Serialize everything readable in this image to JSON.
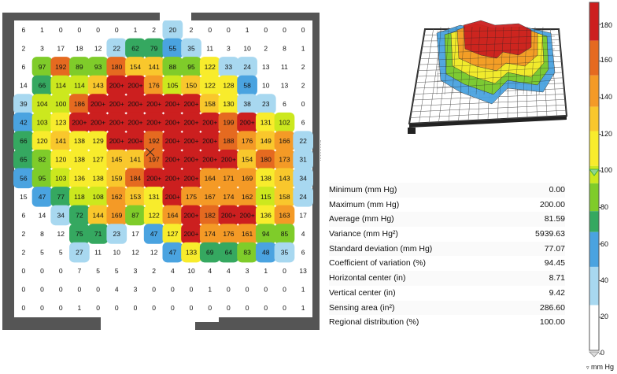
{
  "pressure_map": {
    "rows": [
      [
        "6",
        "1",
        "0",
        "0",
        "0",
        "0",
        "1",
        "2",
        "20",
        "2",
        "0",
        "0",
        "1",
        "0",
        "0",
        "0"
      ],
      [
        "2",
        "3",
        "17",
        "18",
        "12",
        "22",
        "62",
        "79",
        "55",
        "35",
        "11",
        "3",
        "10",
        "2",
        "8",
        "1"
      ],
      [
        "6",
        "97",
        "192",
        "89",
        "93",
        "180",
        "154",
        "141",
        "88",
        "95",
        "122",
        "33",
        "24",
        "13",
        "11",
        "2"
      ],
      [
        "14",
        "66",
        "114",
        "114",
        "143",
        "200+",
        "200+",
        "176",
        "105",
        "150",
        "122",
        "128",
        "58",
        "10",
        "13",
        "2"
      ],
      [
        "39",
        "104",
        "100",
        "186",
        "200+",
        "200+",
        "200+",
        "200+",
        "200+",
        "200+",
        "158",
        "130",
        "38",
        "23",
        "6",
        "0"
      ],
      [
        "42",
        "103",
        "123",
        "200+",
        "200+",
        "200+",
        "200+",
        "200+",
        "200+",
        "200+",
        "200+",
        "199",
        "200+",
        "131",
        "102",
        "6"
      ],
      [
        "66",
        "120",
        "141",
        "138",
        "129",
        "200+",
        "200+",
        "192",
        "200+",
        "200+",
        "200+",
        "188",
        "176",
        "149",
        "166",
        "22"
      ],
      [
        "65",
        "82",
        "120",
        "138",
        "127",
        "145",
        "141",
        "197",
        "200+",
        "200+",
        "200+",
        "200+",
        "154",
        "180",
        "173",
        "31"
      ],
      [
        "56",
        "95",
        "103",
        "136",
        "138",
        "159",
        "184",
        "200+",
        "200+",
        "200+",
        "164",
        "171",
        "169",
        "138",
        "143",
        "34"
      ],
      [
        "15",
        "47",
        "77",
        "118",
        "108",
        "162",
        "153",
        "131",
        "200+",
        "175",
        "167",
        "174",
        "162",
        "115",
        "158",
        "24"
      ],
      [
        "6",
        "14",
        "34",
        "72",
        "144",
        "169",
        "87",
        "122",
        "164",
        "200+",
        "182",
        "200+",
        "200+",
        "136",
        "163",
        "17"
      ],
      [
        "2",
        "8",
        "12",
        "75",
        "71",
        "23",
        "17",
        "47",
        "127",
        "200+",
        "174",
        "176",
        "161",
        "94",
        "85",
        "4"
      ],
      [
        "2",
        "5",
        "5",
        "27",
        "11",
        "10",
        "12",
        "12",
        "47",
        "133",
        "69",
        "64",
        "83",
        "48",
        "35",
        "6"
      ],
      [
        "0",
        "0",
        "0",
        "7",
        "5",
        "5",
        "3",
        "2",
        "4",
        "10",
        "4",
        "4",
        "3",
        "1",
        "0",
        "13"
      ],
      [
        "0",
        "0",
        "0",
        "0",
        "0",
        "4",
        "3",
        "0",
        "0",
        "0",
        "1",
        "0",
        "0",
        "0",
        "0",
        "1"
      ],
      [
        "0",
        "0",
        "0",
        "1",
        "0",
        "0",
        "0",
        "0",
        "0",
        "0",
        "0",
        "0",
        "0",
        "0",
        "0",
        "1"
      ]
    ]
  },
  "statistics": [
    {
      "label": "Minimum (mm Hg)",
      "value": "0.00"
    },
    {
      "label": "Maximum (mm Hg)",
      "value": "200.00"
    },
    {
      "label": "Average (mm Hg)",
      "value": "81.59"
    },
    {
      "label": "Variance (mm Hg²)",
      "value": "5939.63"
    },
    {
      "label": "Standard deviation (mm Hg)",
      "value": "77.07"
    },
    {
      "label": "Coefficient of variation (%)",
      "value": "94.45"
    },
    {
      "label": "Horizontal center (in)",
      "value": "8.71"
    },
    {
      "label": "Vertical center (in)",
      "value": "9.42"
    },
    {
      "label": "Sensing area (in²)",
      "value": "286.60"
    },
    {
      "label": "Regional distribution (%)",
      "value": "100.00"
    }
  ],
  "legend": {
    "ticks": [
      "180",
      "160",
      "140",
      "120",
      "100",
      "80",
      "60",
      "40",
      "20",
      "0"
    ],
    "unit": "mm Hg",
    "colors": [
      "#ffffff",
      "#a8d8f0",
      "#4aa3e0",
      "#35a860",
      "#7fcc2a",
      "#cce81e",
      "#f8ec2c",
      "#f9c72c",
      "#f49a26",
      "#e56a20",
      "#cc1f1f"
    ]
  },
  "surface_view": {
    "colors": {
      "frame": "#222222",
      "grid": "#555555"
    }
  }
}
